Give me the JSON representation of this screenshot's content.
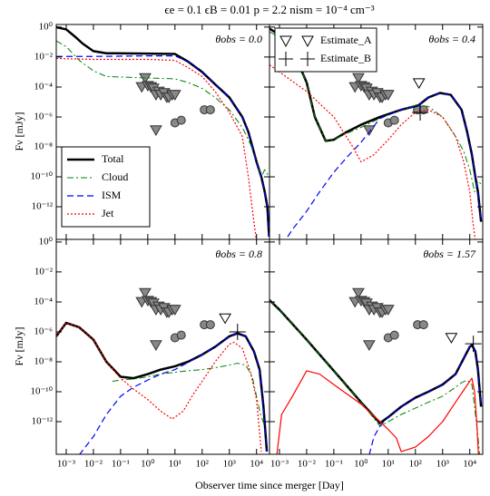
{
  "title": "ϵe = 0.1 ϵB = 0.01 p = 2.2 nism = 10⁻⁴ cm⁻³",
  "xlabel": "Observer time since merger [Day]",
  "ylabel": "Fν [mJy]",
  "xscale": "log",
  "yscale": "log",
  "xlim": [
    0.00043,
    30000
  ],
  "ylim": [
    6.6e-15,
    1.5
  ],
  "xticks": [
    {
      "value": 0.001,
      "label": "10⁻³"
    },
    {
      "value": 0.01,
      "label": "10⁻²"
    },
    {
      "value": 0.1,
      "label": "10⁻¹"
    },
    {
      "value": 1,
      "label": "10⁰"
    },
    {
      "value": 10,
      "label": "10¹"
    },
    {
      "value": 100,
      "label": "10²"
    },
    {
      "value": 1000,
      "label": "10³"
    },
    {
      "value": 10000,
      "label": "10⁴"
    }
  ],
  "yticks": [
    {
      "value": 1,
      "label": "10⁰"
    },
    {
      "value": 0.01,
      "label": "10⁻²"
    },
    {
      "value": 0.0001,
      "label": "10⁻⁴"
    },
    {
      "value": 1e-06,
      "label": "10⁻⁶"
    },
    {
      "value": 1e-08,
      "label": "10⁻⁸"
    },
    {
      "value": 1e-10,
      "label": "10⁻¹⁰"
    },
    {
      "value": 1e-12,
      "label": "10⁻¹²"
    }
  ],
  "observations": {
    "color": "#888888",
    "upper_limits": {
      "x": [
        0.6,
        0.8,
        1,
        1.3,
        1.6,
        2,
        2.5,
        3,
        4,
        5,
        6,
        8,
        10,
        2
      ],
      "values": [
        0.0001,
        0.0004,
        0.00012,
        0.0001,
        8e-05,
        3e-05,
        5e-05,
        3e-05,
        4e-05,
        2e-05,
        2e-05,
        3e-05,
        3e-05,
        1.3e-07
      ]
    },
    "detections": {
      "x": [
        10,
        17,
        120,
        200
      ],
      "values": [
        4e-07,
        6e-07,
        3e-06,
        3e-06
      ]
    }
  },
  "chart_data": [
    {
      "type": "line",
      "annotation": "θobs = 0.0",
      "legend": "lower left",
      "series": [
        {
          "name": "Total",
          "color": "#000000",
          "linestyle": "solid",
          "linewidth": 2.5,
          "x": [
            0.00043,
            0.001,
            0.002,
            0.004,
            0.01,
            0.03,
            1,
            10,
            30,
            100,
            300,
            1000,
            3000,
            5000,
            10000,
            15000,
            20000,
            25000,
            29000
          ],
          "values": [
            1,
            0.7,
            0.25,
            0.08,
            0.025,
            0.018,
            0.017,
            0.016,
            0.005,
            0.001,
            0.00015,
            2e-05,
            1e-06,
            1e-07,
            1e-09,
            1e-10,
            1e-11,
            1e-12,
            1e-14
          ]
        },
        {
          "name": "Cloud",
          "color": "#008000",
          "linestyle": "dashdot",
          "linewidth": 1,
          "x": [
            0.00043,
            0.001,
            0.003,
            0.01,
            0.03,
            1,
            10,
            30,
            100,
            300,
            1000,
            3000,
            6000,
            10000,
            15000,
            20000,
            29000
          ],
          "values": [
            0.12,
            0.05,
            0.006,
            0.0012,
            0.0005,
            0.0004,
            0.00035,
            0.0002,
            8e-05,
            2e-05,
            3e-06,
            2e-07,
            1.5e-08,
            1e-09,
            1e-10,
            3e-10,
            1e-10
          ]
        },
        {
          "name": "ISM",
          "color": "#0000ff",
          "linestyle": "dashed",
          "linewidth": 1.2,
          "x": [
            0.00043,
            0.001,
            0.01,
            1,
            10,
            30,
            100,
            300,
            1000,
            3000,
            5000,
            10000,
            15000,
            20000,
            25000,
            29000
          ],
          "values": [
            0.011,
            0.011,
            0.011,
            0.012,
            0.012,
            0.005,
            0.001,
            0.00015,
            2e-05,
            1e-06,
            1e-07,
            1e-09,
            1e-10,
            1e-11,
            1e-12,
            1e-14
          ]
        },
        {
          "name": "Jet",
          "color": "#ff0000",
          "linestyle": "dotted",
          "linewidth": 1.2,
          "x": [
            0.00043,
            0.01,
            1,
            10,
            30,
            100,
            300,
            1000,
            3000,
            5000,
            8000,
            10000
          ],
          "values": [
            0.008,
            0.007,
            0.007,
            0.006,
            0.002,
            0.0005,
            5e-05,
            2e-06,
            5e-08,
            1e-10,
            1e-13,
            5e-15
          ]
        }
      ]
    },
    {
      "type": "line",
      "annotation": "θobs = 0.4",
      "legend": "upper left",
      "series": [
        {
          "color": "#000000",
          "linestyle": "solid",
          "linewidth": 2.5,
          "x": [
            0.00043,
            0.001,
            0.003,
            0.01,
            0.02,
            0.05,
            0.1,
            0.3,
            1,
            5,
            30,
            130,
            300,
            800,
            2000,
            5000,
            8000,
            12000,
            16000,
            20000,
            26000
          ],
          "values": [
            0.8,
            0.3,
            0.03,
            0.0002,
            1e-06,
            2.5e-08,
            3e-08,
            1e-07,
            3e-07,
            1e-06,
            3e-06,
            6e-06,
            2e-05,
            4e-05,
            3e-05,
            3e-06,
            1e-07,
            3e-09,
            1e-10,
            1e-11,
            1e-13
          ]
        },
        {
          "color": "#008000",
          "linestyle": "dashdot",
          "linewidth": 1,
          "x": [
            0.00043,
            0.001,
            0.003,
            0.01,
            0.02,
            0.05,
            0.1,
            0.3,
            1,
            5,
            30,
            100,
            300,
            1000,
            3000,
            6000,
            10000,
            15000,
            20000,
            28000
          ],
          "values": [
            0.5,
            0.2,
            0.02,
            0.0002,
            1e-06,
            2.5e-08,
            3e-08,
            8e-08,
            2e-07,
            8e-07,
            3e-06,
            6e-06,
            5e-06,
            1e-06,
            5e-08,
            5e-09,
            3e-10,
            1e-11,
            5e-11,
            3e-11
          ]
        },
        {
          "color": "#0000ff",
          "linestyle": "dashed",
          "linewidth": 1.2,
          "x": [
            0.002,
            0.003,
            0.01,
            0.03,
            0.1,
            0.3,
            1,
            5,
            30,
            130,
            300,
            800,
            2000,
            5000,
            8000,
            12000,
            16000,
            20000,
            26000
          ],
          "values": [
            1e-14,
            3e-14,
            5e-13,
            1e-11,
            2e-10,
            2e-09,
            2e-08,
            8e-07,
            3e-06,
            6e-06,
            2e-05,
            4e-05,
            3e-05,
            3e-06,
            1e-07,
            3e-09,
            1e-10,
            1e-11,
            1e-13
          ]
        },
        {
          "color": "#ff0000",
          "linestyle": "dotted",
          "linewidth": 1.2,
          "x": [
            0.00043,
            0.001,
            0.01,
            0.1,
            0.5,
            1,
            3,
            10,
            30,
            100,
            300,
            1000,
            3000,
            6000,
            10000,
            13000,
            16000
          ],
          "values": [
            0.003,
            0.001,
            5e-05,
            1e-06,
            1e-08,
            1e-09,
            3e-09,
            3e-08,
            3e-07,
            2e-06,
            3e-06,
            1e-06,
            5e-08,
            1e-09,
            1e-11,
            1e-13,
            5e-15
          ]
        },
        {
          "name": "Estimate_A",
          "color": "#000000",
          "marker": "triangle_open",
          "x": [
            135
          ],
          "values": [
            0.00018
          ]
        },
        {
          "name": "Estimate_B",
          "color": "#000000",
          "marker": "plus",
          "x": [
            150
          ],
          "values": [
            2e-06
          ]
        }
      ]
    },
    {
      "type": "line",
      "annotation": "θobs = 0.8",
      "series": [
        {
          "color": "#000000",
          "linestyle": "solid",
          "linewidth": 2.5,
          "x": [
            0.00043,
            0.001,
            0.003,
            0.01,
            0.03,
            0.1,
            0.3,
            1,
            3,
            10,
            30,
            100,
            300,
            1000,
            2000,
            4000,
            8000,
            13000,
            18000,
            24000
          ],
          "values": [
            5e-07,
            4e-06,
            2e-06,
            3e-07,
            1e-08,
            1e-09,
            8e-10,
            1.5e-09,
            3e-09,
            5e-09,
            1e-08,
            3e-08,
            1e-07,
            5e-07,
            8e-07,
            5e-07,
            5e-08,
            3e-09,
            1e-11,
            1e-14
          ]
        },
        {
          "color": "#008000",
          "linestyle": "dashdot",
          "linewidth": 1,
          "x": [
            0.05,
            0.1,
            0.3,
            1,
            3,
            10,
            30,
            100,
            300,
            1000,
            2000,
            4000,
            7000,
            10000,
            14000,
            20000
          ],
          "values": [
            5e-10,
            6e-10,
            7e-10,
            1e-09,
            1.5e-09,
            2e-09,
            2.5e-09,
            3e-09,
            4e-09,
            6e-09,
            8e-09,
            6e-09,
            1e-09,
            5e-11,
            3e-12,
            5e-13
          ]
        },
        {
          "color": "#0000ff",
          "linestyle": "dashed",
          "linewidth": 1.2,
          "x": [
            0.003,
            0.01,
            0.03,
            0.1,
            0.3,
            1,
            3,
            10,
            30,
            100,
            300,
            1000,
            2000,
            4000,
            8000,
            13000,
            18000,
            24000
          ],
          "values": [
            6e-15,
            1e-13,
            3e-12,
            5e-11,
            2e-10,
            6e-10,
            1.5e-09,
            3e-09,
            9e-09,
            3e-08,
            1e-07,
            5e-07,
            8e-07,
            5e-07,
            5e-08,
            3e-09,
            1e-11,
            1e-14
          ]
        },
        {
          "color": "#ff0000",
          "linestyle": "dotted",
          "linewidth": 1.2,
          "x": [
            0.00043,
            0.001,
            0.003,
            0.01,
            0.03,
            0.1,
            0.3,
            1,
            3,
            8,
            20,
            50,
            100,
            300,
            1000,
            1500,
            3000,
            6000,
            10000,
            15000
          ],
          "values": [
            5e-07,
            4e-06,
            2e-06,
            3e-07,
            1e-08,
            8e-10,
            1.5e-10,
            3e-11,
            5e-12,
            1.5e-12,
            5e-12,
            8e-11,
            5e-10,
            1e-08,
            1.5e-07,
            2e-07,
            8e-08,
            2e-09,
            3e-11,
            1e-14
          ]
        },
        {
          "color": "#000000",
          "marker": "triangle_open",
          "x": [
            700
          ],
          "values": [
            8e-06
          ]
        },
        {
          "color": "#000000",
          "marker": "plus",
          "x": [
            2000
          ],
          "values": [
            1e-06
          ]
        }
      ]
    },
    {
      "type": "line",
      "annotation": "θobs = 1.57",
      "series": [
        {
          "color": "#000000",
          "linestyle": "solid",
          "linewidth": 2.5,
          "x": [
            0.00043,
            0.001,
            0.01,
            0.1,
            1,
            5,
            10,
            30,
            100,
            300,
            1000,
            3000,
            10000,
            12000,
            16000,
            20000,
            26000
          ],
          "values": [
            0.00013,
            3e-05,
            3e-07,
            2.5e-09,
            2e-11,
            8e-13,
            2e-12,
            1e-11,
            4e-11,
            1e-10,
            3e-10,
            1.5e-09,
            1e-07,
            1.3e-07,
            5e-08,
            3e-09,
            1e-11
          ]
        },
        {
          "color": "#008000",
          "linestyle": "dashdot",
          "linewidth": 1,
          "x": [
            0.00043,
            0.001,
            0.01,
            0.1,
            1,
            5,
            10,
            30,
            100,
            300,
            1000,
            3000,
            5000,
            8000,
            12000,
            15000,
            20000,
            25000
          ],
          "values": [
            0.00013,
            3e-05,
            3e-07,
            2.5e-09,
            2e-11,
            5e-13,
            1e-12,
            3e-12,
            8e-12,
            2e-11,
            5e-11,
            2e-10,
            4e-10,
            6e-10,
            3e-10,
            1e-11,
            1e-13,
            1e-15
          ]
        },
        {
          "color": "#0000ff",
          "linestyle": "dashed",
          "linewidth": 1.2,
          "x": [
            2,
            3,
            5,
            10,
            30,
            100,
            300,
            1000,
            3000,
            10000,
            12000,
            16000,
            20000,
            26000
          ],
          "values": [
            6e-15,
            1e-13,
            5e-13,
            2e-12,
            1e-11,
            4e-11,
            1e-10,
            3e-10,
            1.5e-09,
            1e-07,
            1.3e-07,
            5e-08,
            3e-09,
            1e-11
          ]
        },
        {
          "color": "#ff0000",
          "linestyle": "solid",
          "linewidth": 1.2,
          "x": [
            0.0008,
            0.0012,
            0.003,
            0.01,
            0.03,
            0.1,
            1,
            5,
            10,
            20,
            30,
            100,
            300,
            1000,
            3000,
            10000,
            12000,
            15000,
            18000,
            22000
          ],
          "values": [
            6e-15,
            3e-12,
            5e-11,
            2.5e-09,
            1.5e-09,
            3e-10,
            1.5e-11,
            1e-12,
            3e-13,
            8e-14,
            1e-14,
            2e-14,
            1e-13,
            1e-12,
            2e-11,
            5e-10,
            8e-10,
            1e-10,
            1e-12,
            1e-15
          ]
        },
        {
          "color": "#000000",
          "marker": "triangle_open",
          "x": [
            2100
          ],
          "values": [
            4e-07
          ]
        },
        {
          "color": "#000000",
          "marker": "plus",
          "x": [
            13500
          ],
          "values": [
            1.6e-07
          ]
        }
      ]
    }
  ]
}
